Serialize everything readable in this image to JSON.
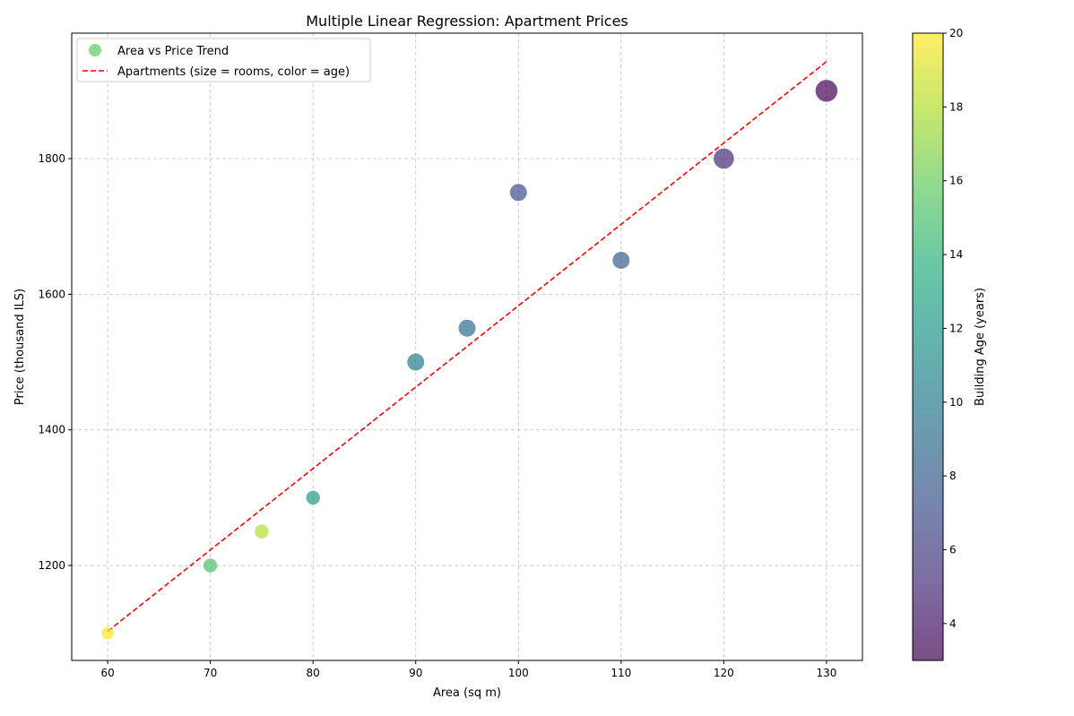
{
  "chart_data": {
    "type": "scatter",
    "title": "Multiple Linear Regression: Apartment Prices",
    "xlabel": "Area (sq m)",
    "ylabel": "Price (thousand ILS)",
    "xlim": [
      56.5,
      133.5
    ],
    "ylim": [
      1060,
      1985
    ],
    "xticks": [
      60,
      70,
      80,
      90,
      100,
      110,
      120,
      130
    ],
    "yticks": [
      1200,
      1400,
      1600,
      1800
    ],
    "grid": true,
    "legend": {
      "placement": "upper-left",
      "entries": [
        {
          "label": "Area vs Price Trend",
          "marker": "circle",
          "color": "#5ec962"
        },
        {
          "label": "Apartments (size = rooms, color = age)",
          "marker": "dashed-line",
          "color": "#ff0000"
        }
      ]
    },
    "series": [
      {
        "kind": "points",
        "points": [
          {
            "x": 60,
            "y": 1100,
            "rooms": 2,
            "age": 20
          },
          {
            "x": 70,
            "y": 1200,
            "rooms": 2.5,
            "age": 15
          },
          {
            "x": 75,
            "y": 1250,
            "rooms": 2.5,
            "age": 18
          },
          {
            "x": 80,
            "y": 1300,
            "rooms": 2.5,
            "age": 12
          },
          {
            "x": 90,
            "y": 1500,
            "rooms": 3.5,
            "age": 10
          },
          {
            "x": 95,
            "y": 1550,
            "rooms": 3.5,
            "age": 9
          },
          {
            "x": 100,
            "y": 1750,
            "rooms": 3.5,
            "age": 7
          },
          {
            "x": 110,
            "y": 1650,
            "rooms": 3.5,
            "age": 8
          },
          {
            "x": 120,
            "y": 1800,
            "rooms": 4.5,
            "age": 5
          },
          {
            "x": 130,
            "y": 1900,
            "rooms": 5,
            "age": 3
          }
        ]
      },
      {
        "kind": "trend-line",
        "color": "#ff0000",
        "style": "dashed",
        "x": [
          60,
          130
        ],
        "y": [
          1103,
          1943
        ]
      }
    ],
    "colorbar": {
      "label": "Building Age (years)",
      "colormap": "viridis",
      "range": [
        3,
        20
      ],
      "ticks": [
        4,
        6,
        8,
        10,
        12,
        14,
        16,
        18,
        20
      ]
    }
  }
}
